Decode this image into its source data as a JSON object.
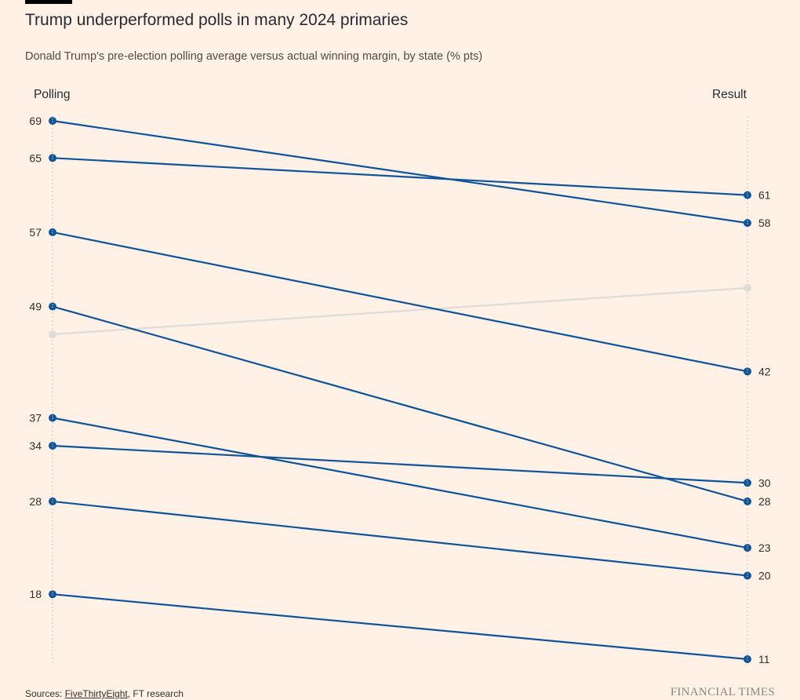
{
  "title": "Trump underperformed polls in many 2024 primaries",
  "subtitle": "Donald Trump's pre-election polling average versus actual winning margin, by state (% pts)",
  "left_label": "Polling",
  "right_label": "Result",
  "source": {
    "prefix": "Sources: ",
    "link": "FiveThirtyEight",
    "suffix": ", FT research"
  },
  "brand": "FINANCIAL TIMES",
  "colors": {
    "series": "#0f5499",
    "muted": "#dedbd8",
    "axis": "#ccc1b7"
  },
  "chart_data": {
    "type": "line",
    "x": [
      "Polling",
      "Result"
    ],
    "ylim": [
      11,
      69
    ],
    "series": [
      {
        "values": [
          69,
          58
        ]
      },
      {
        "values": [
          65,
          61
        ]
      },
      {
        "values": [
          57,
          42
        ]
      },
      {
        "values": [
          49,
          28
        ]
      },
      {
        "values": [
          37,
          23
        ]
      },
      {
        "values": [
          34,
          30
        ]
      },
      {
        "values": [
          28,
          20
        ]
      },
      {
        "values": [
          18,
          11
        ]
      },
      {
        "values": [
          46,
          51
        ],
        "muted": true
      }
    ]
  }
}
